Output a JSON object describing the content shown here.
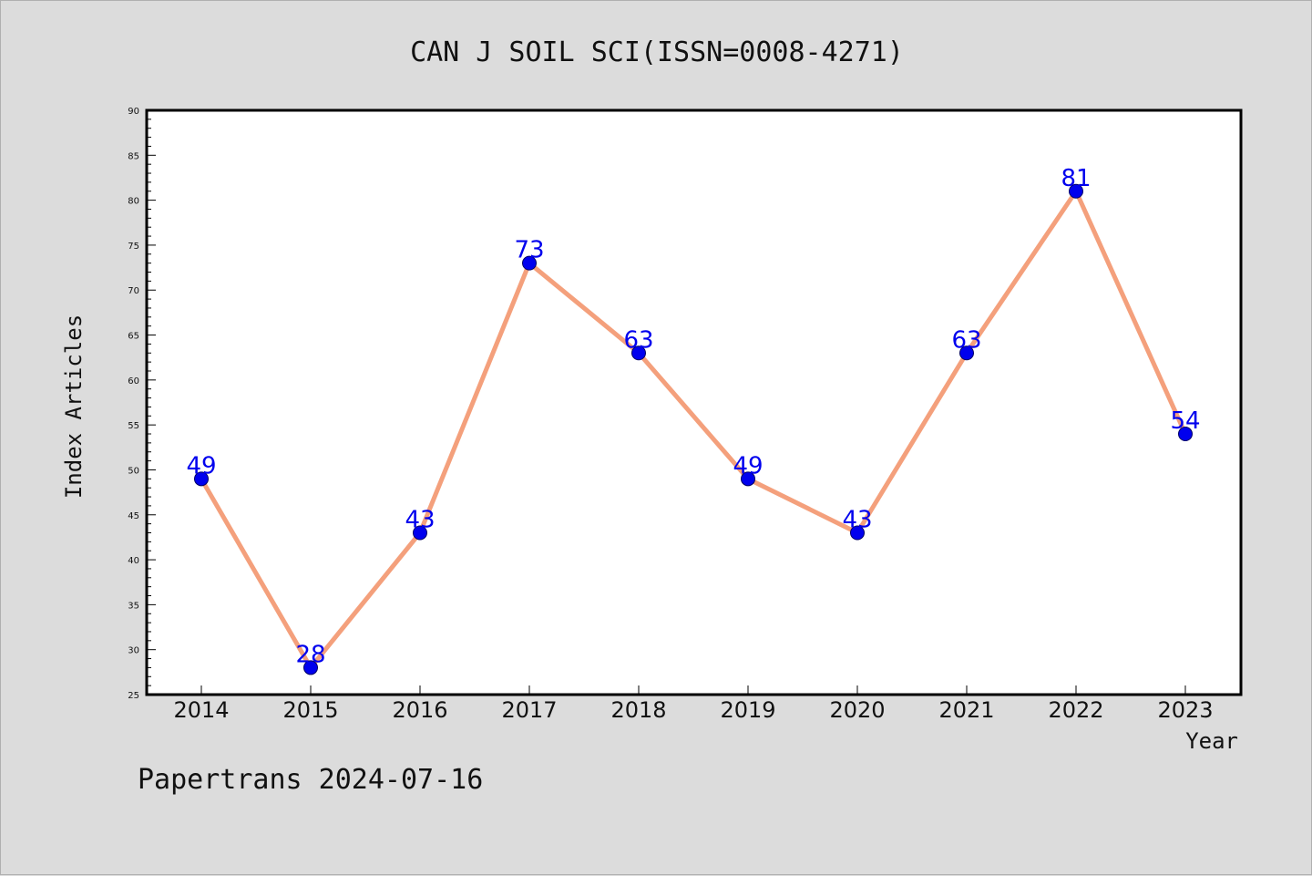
{
  "chart_data": {
    "type": "line",
    "title": "CAN J SOIL SCI(ISSN=0008-4271)",
    "xlabel": "Year",
    "ylabel": "Index Articles",
    "categories": [
      "2014",
      "2015",
      "2016",
      "2017",
      "2018",
      "2019",
      "2020",
      "2021",
      "2022",
      "2023"
    ],
    "values": [
      49,
      28,
      43,
      73,
      63,
      49,
      43,
      63,
      81,
      54
    ],
    "ylim": [
      25,
      90
    ],
    "yticks": [
      25,
      30,
      35,
      40,
      45,
      50,
      55,
      60,
      65,
      70,
      75,
      80,
      85,
      90
    ],
    "grid": false,
    "legend": "none",
    "colors": {
      "line": "#f4a07c",
      "marker": "#0000ee",
      "marker_edge": "#000066",
      "label": "#0000ee",
      "plot_bg": "#ffffff",
      "page_bg": "#dcdcdc"
    }
  },
  "footer": "Papertrans 2024-07-16"
}
